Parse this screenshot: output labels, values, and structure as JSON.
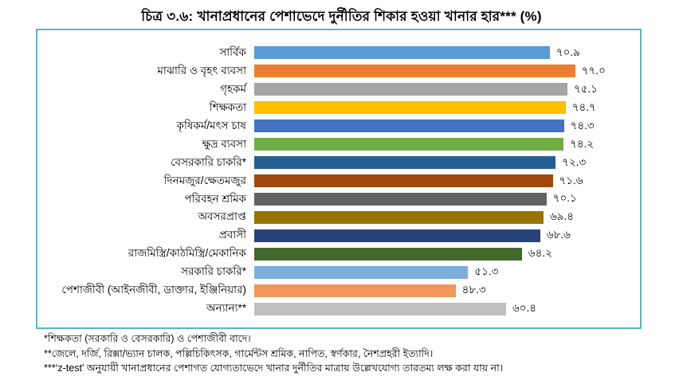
{
  "title": "চিত্র ৩.৬: খানাপ্রধানের পেশাভেদে দুর্নীতির শিকার হওয়া খানার হার*** (%)",
  "chart_data": {
    "type": "bar",
    "orientation": "horizontal",
    "title": "চিত্র ৩.৬: খানাপ্রধানের পেশাভেদে দুর্নীতির শিকার হওয়া খানার হার*** (%)",
    "xlabel": "",
    "ylabel": "",
    "xlim": [
      0,
      91
    ],
    "grid": false,
    "legend": false,
    "categories": [
      "সার্বিক",
      "মাঝারি ও বৃহৎ ব্যবসা",
      "গৃহকর্ম",
      "শিক্ষকতা",
      "কৃষিকর্ম/মৎস চাষ",
      "ক্ষুদ্র ব্যবসা",
      "বেসরকারি চাকরি*",
      "দিনমজুর/ক্ষেতমজুর",
      "পরিবহন শ্রমিক",
      "অবসরপ্রাপ্ত",
      "প্রবাসী",
      "রাজমিস্ত্রি/কাঠমিস্ত্রি/মেকানিক",
      "সরকারি চাকরি*",
      "পেশাজীবী (আইনজীবী, ডাক্তার, ইঞ্জিনিয়ার)",
      "অন্যান্য**"
    ],
    "values": [
      70.9,
      77.0,
      75.1,
      74.7,
      74.3,
      74.2,
      72.3,
      71.6,
      70.1,
      69.4,
      68.6,
      64.2,
      51.3,
      48.3,
      60.4
    ],
    "value_labels": [
      "৭০.৯",
      "৭৭.০",
      "৭৫.১",
      "৭৪.৭",
      "৭৪.৩",
      "৭৪.২",
      "৭২.৩",
      "৭১.৬",
      "৭০.১",
      "৬৯.৪",
      "৬৮.৬",
      "৬৪.২",
      "৫১.৩",
      "৪৮.৩",
      "৬০.৪"
    ],
    "bar_colors": [
      "#5b9bd5",
      "#ed7d31",
      "#a5a5a5",
      "#ffc000",
      "#4472c4",
      "#70ad47",
      "#255e91",
      "#9e480e",
      "#636363",
      "#997300",
      "#264478",
      "#43682b",
      "#7cafdd",
      "#f1975a",
      "#bfbfbf"
    ]
  },
  "footnotes": [
    "*শিক্ষকতা (সরকারি ও বেসরকারি) ও পেশাজীবী বাদে।",
    "**জেলে, দর্জি, রিক্সা/ভ্যান চালক, পল্লিচিকিৎসক, গার্মেন্টস শ্রমিক, নাপিত, স্বর্ণকার, নৈশপ্রহরী ইত্যাদি।",
    "***‘z-test’ অনুযায়ী খানাপ্রধানের পেশাগত যোগ্যতাভেদে খানার দুর্নীতির মাত্রায় উল্লেখযোগ্য তারতম্য লক্ষ করা যায় না।"
  ],
  "colors": {
    "chart_border": "#5ab6c6",
    "text": "#000000",
    "background": "#ffffff"
  }
}
